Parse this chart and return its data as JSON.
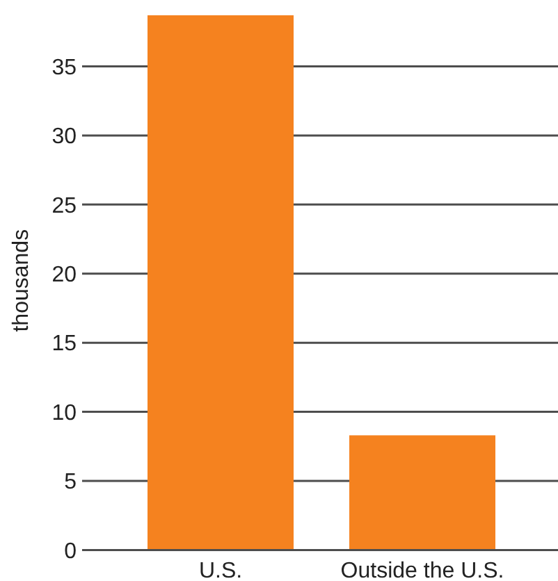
{
  "chart_data": {
    "type": "bar",
    "ylabel": "thousands",
    "categories": [
      "U.S.",
      "Outside the U.S."
    ],
    "values": [
      38.7,
      8.3
    ],
    "color": "#f5821f",
    "ylim": [
      0,
      38.7
    ],
    "yticks": [
      0,
      5,
      10,
      15,
      20,
      25,
      30,
      35
    ],
    "grid": "y"
  }
}
